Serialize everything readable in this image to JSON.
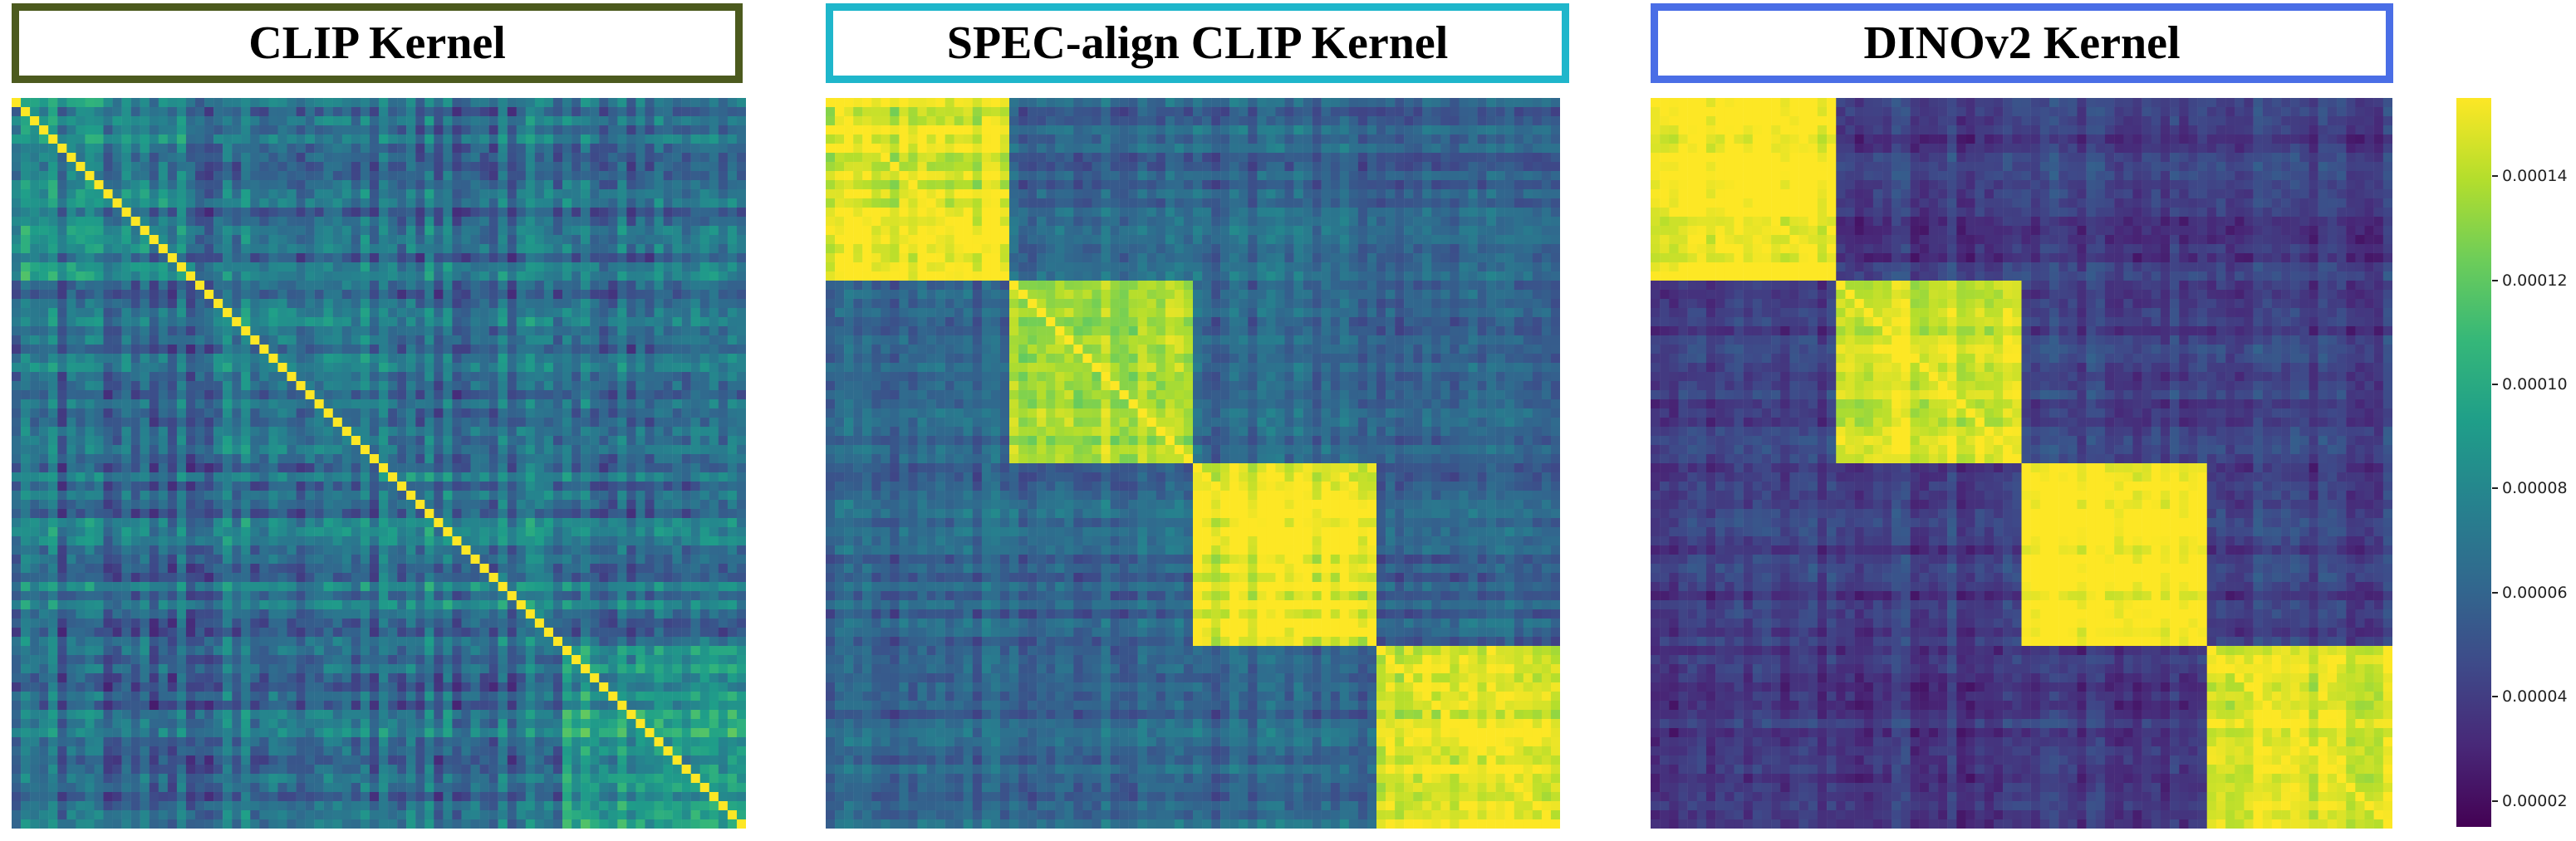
{
  "chart_data": [
    {
      "type": "heatmap",
      "title": "CLIP Kernel",
      "border_color": "#4c5a1e",
      "n": 80,
      "block_sizes": [
        20,
        20,
        20,
        20
      ],
      "diagonal_value": 0.000155,
      "within_block_value": [
        8e-05,
        7e-05,
        7e-05,
        9e-05
      ],
      "between_block_value": 6.5e-05,
      "noise": 4e-05
    },
    {
      "type": "heatmap",
      "title": "SPEC-align CLIP Kernel",
      "border_color": "#1fb6cb",
      "n": 80,
      "block_sizes": [
        20,
        20,
        20,
        20
      ],
      "diagonal_value": 0.000155,
      "within_block_value": [
        0.000148,
        0.000135,
        0.000152,
        0.00015
      ],
      "between_block_value": 6e-05,
      "noise": 2.5e-05
    },
    {
      "type": "heatmap",
      "title": "DINOv2 Kernel",
      "border_color": "#4a6ee6",
      "n": 80,
      "block_sizes": [
        20,
        20,
        20,
        20
      ],
      "diagonal_value": 0.000155,
      "within_block_value": [
        0.000155,
        0.000145,
        0.000155,
        0.00015
      ],
      "between_block_value": 4e-05,
      "noise": 2e-05
    }
  ],
  "colorbar": {
    "colormap": "viridis",
    "vmin": 1.5e-05,
    "vmax": 0.000155,
    "ticks": [
      "0.00014",
      "0.00012",
      "0.00010",
      "0.00008",
      "0.00006",
      "0.00004",
      "0.00002"
    ],
    "tick_values": [
      0.00014,
      0.00012,
      0.0001,
      8e-05,
      6e-05,
      4e-05,
      2e-05
    ]
  }
}
